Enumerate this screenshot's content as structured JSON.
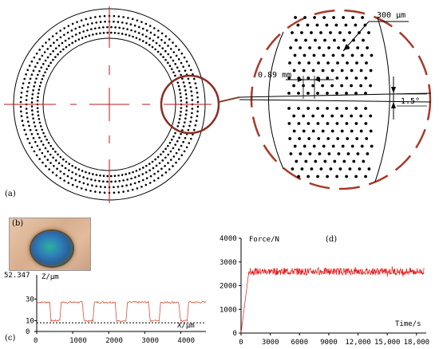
{
  "panels": {
    "a": "(a)",
    "b": "(b)",
    "c": "(c)",
    "d": "(d)"
  },
  "annotations": {
    "pit_diameter": "300 μm",
    "pit_spacing": "0.89 mm",
    "angle": "1.5°"
  },
  "colors": {
    "crosshair": "#b5171d",
    "zoom_circle": "#8b2c22",
    "force_line": "#e51a1a",
    "profile_line": "#d0543a"
  },
  "chart_data": [
    {
      "type": "line",
      "panel": "c",
      "title": "",
      "ylabel": "Z/μm",
      "xlabel": "X/μm",
      "x_ticks": [
        "0",
        "1000",
        "2000",
        "3000",
        "4000"
      ],
      "y_ticks": [
        "0",
        "10",
        "30"
      ],
      "y_max_label": "52.347",
      "xlim": [
        0,
        4700
      ],
      "ylim": [
        0,
        52.347
      ],
      "baseline_z": 8,
      "top_z": 27,
      "pit_bottom_z": 10,
      "pits_x": [
        [
          360,
          680
        ],
        [
          1270,
          1600
        ],
        [
          2180,
          2520
        ],
        [
          3110,
          3440
        ],
        [
          3950,
          4220
        ]
      ]
    },
    {
      "type": "line",
      "panel": "d",
      "title": "",
      "ylabel": "Force/N",
      "xlabel": "Time/s",
      "x_ticks": [
        "0",
        "3000",
        "6000",
        "9000",
        "12,000",
        "15,000",
        "18,000"
      ],
      "y_ticks": [
        "0",
        "1000",
        "2000",
        "3000",
        "4000"
      ],
      "xlim": [
        0,
        19000
      ],
      "ylim": [
        0,
        4000
      ],
      "series": [
        {
          "ramp_end_time": 800,
          "mean_force": 2600,
          "noise_amplitude": 150
        }
      ]
    }
  ]
}
